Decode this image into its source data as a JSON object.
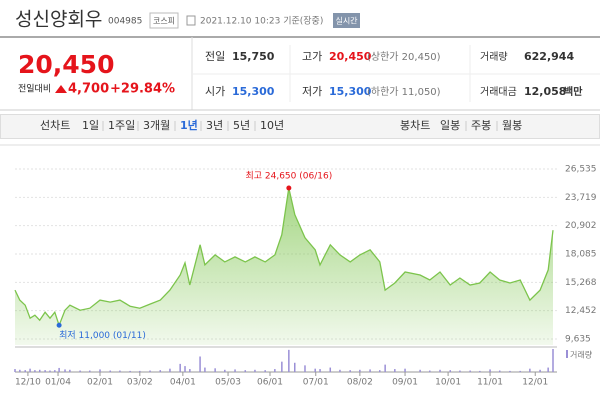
{
  "header": {
    "name": "성신양회우",
    "code": "004985",
    "market": "코스피",
    "datetime": "2021.12.10 10:23 기준(장중)",
    "realtime": "실시간"
  },
  "quote": {
    "price": "20,450",
    "change_label": "전일대비",
    "change": "4,700",
    "change_rate": "+29.84%"
  },
  "summary": [
    [
      {
        "label": "전일",
        "value": "15,750"
      },
      {
        "label": "고가",
        "value": "20,450",
        "note": "(상한가 20,450)"
      },
      {
        "label": "거래량",
        "value": "622,944"
      }
    ],
    [
      {
        "label": "시가",
        "value": "15,300"
      },
      {
        "label": "저가",
        "value": "15,300",
        "note": "(하한가 11,050)"
      },
      {
        "label": "거래대금",
        "value": "12,058",
        "unit": "백만"
      }
    ]
  ],
  "tabs": {
    "line_label": "선차트",
    "line": [
      "1일",
      "1주일",
      "3개월",
      "1년",
      "3년",
      "5년",
      "10년"
    ],
    "selected": 3,
    "candle_label": "봉차트",
    "candle": [
      "일봉",
      "주봉",
      "월봉"
    ]
  },
  "chart_data": {
    "type": "area",
    "color": "#7cc44c",
    "x": [
      0,
      0.9,
      1.9,
      2.8,
      3.7,
      4.6,
      5.6,
      6.5,
      7.4,
      8.2,
      9.3,
      10.2,
      12.1,
      13.9,
      15.8,
      17.7,
      19.5,
      21.4,
      23.2,
      25.1,
      27,
      28.8,
      30.7,
      31.6,
      32.5,
      34.4,
      35.3,
      37.2,
      39,
      40.9,
      42.8,
      44.6,
      46.5,
      48.3,
      49.6,
      50.9,
      52,
      53.9,
      55.8,
      56.7,
      58.6,
      60.4,
      62.3,
      64.1,
      66,
      67.8,
      68.8,
      70.6,
      72.5,
      75.3,
      77.1,
      79,
      80.9,
      82.7,
      84.6,
      86.4,
      88.3,
      90.1,
      92,
      93.9,
      95.7,
      97.6,
      99.1,
      100
    ],
    "values": [
      14500,
      13500,
      13000,
      11700,
      12000,
      11500,
      12300,
      11700,
      12300,
      11000,
      12500,
      13000,
      12500,
      12700,
      13500,
      13300,
      13500,
      12900,
      12700,
      13100,
      13500,
      14500,
      16000,
      17200,
      15000,
      19000,
      17000,
      18000,
      17300,
      17800,
      17300,
      17800,
      17300,
      18000,
      20000,
      24650,
      22000,
      19700,
      18500,
      17000,
      19000,
      18000,
      17300,
      18000,
      18500,
      17300,
      14500,
      15200,
      16300,
      16000,
      15500,
      16300,
      15000,
      15700,
      15000,
      15200,
      16300,
      15500,
      15200,
      15500,
      13500,
      14500,
      16500,
      20450
    ],
    "xlim": [
      0,
      100
    ],
    "xticks": [
      {
        "value": 2.4,
        "label": "12/10"
      },
      {
        "value": 8,
        "label": "01/04"
      },
      {
        "value": 15.8,
        "label": "02/01"
      },
      {
        "value": 23.2,
        "label": "03/02"
      },
      {
        "value": 31.2,
        "label": "04/01"
      },
      {
        "value": 39.6,
        "label": "05/03"
      },
      {
        "value": 47.4,
        "label": "06/01"
      },
      {
        "value": 55.9,
        "label": "07/01"
      },
      {
        "value": 64.1,
        "label": "08/02"
      },
      {
        "value": 72.5,
        "label": "09/01"
      },
      {
        "value": 80.5,
        "label": "10/01"
      },
      {
        "value": 88.3,
        "label": "11/01"
      },
      {
        "value": 96.7,
        "label": "12/01"
      }
    ],
    "ylim": [
      9635,
      26535
    ],
    "yticks": [
      {
        "value": 26535,
        "label": "26,535"
      },
      {
        "value": 23719,
        "label": "23,719"
      },
      {
        "value": 20902,
        "label": "20,902"
      },
      {
        "value": 18085,
        "label": "18,085"
      },
      {
        "value": 15268,
        "label": "15,268"
      },
      {
        "value": 12452,
        "label": "12,452"
      },
      {
        "value": 9635,
        "label": "9,635"
      }
    ],
    "grid": true,
    "annotations": [
      {
        "text": "최고 24,650 (06/16)",
        "color": "#e5141b"
      },
      {
        "text": "최저 11,000 (01/11)",
        "color": "#2a6ad8"
      }
    ],
    "volume": {
      "name": "거래량",
      "color": "#9a8fd6",
      "ylim": [
        0,
        650000
      ],
      "values": [
        80000,
        60000,
        50000,
        90000,
        50000,
        60000,
        50000,
        40000,
        50000,
        110000,
        70000,
        60000,
        40000,
        40000,
        70000,
        40000,
        40000,
        30000,
        30000,
        40000,
        50000,
        90000,
        220000,
        160000,
        80000,
        420000,
        120000,
        100000,
        60000,
        70000,
        50000,
        60000,
        50000,
        80000,
        280000,
        600000,
        250000,
        180000,
        90000,
        80000,
        120000,
        60000,
        50000,
        60000,
        70000,
        50000,
        200000,
        80000,
        90000,
        60000,
        40000,
        60000,
        50000,
        40000,
        40000,
        30000,
        70000,
        40000,
        30000,
        30000,
        90000,
        60000,
        120000,
        622944
      ]
    }
  }
}
